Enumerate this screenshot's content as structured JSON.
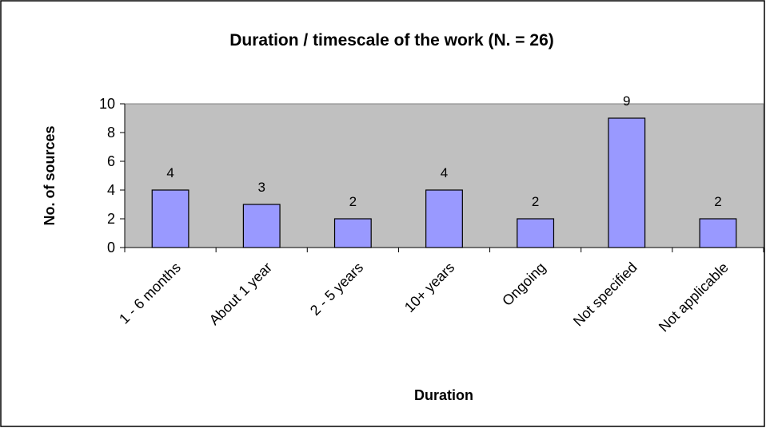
{
  "chart_data": {
    "type": "bar",
    "title": "Duration / timescale of the work (N. = 26)",
    "x_label": "Duration",
    "y_label": "No. of sources",
    "categories": [
      "1 - 6 months",
      "About 1 year",
      "2 - 5 years",
      "10+ years",
      "Ongoing",
      "Not specified",
      "Not applicable"
    ],
    "values": [
      4,
      3,
      2,
      4,
      2,
      9,
      2
    ],
    "color": "#9999ff",
    "ylim": [
      0,
      10
    ],
    "yticks": [
      0,
      2,
      4,
      6,
      8,
      10
    ],
    "grid": false
  }
}
